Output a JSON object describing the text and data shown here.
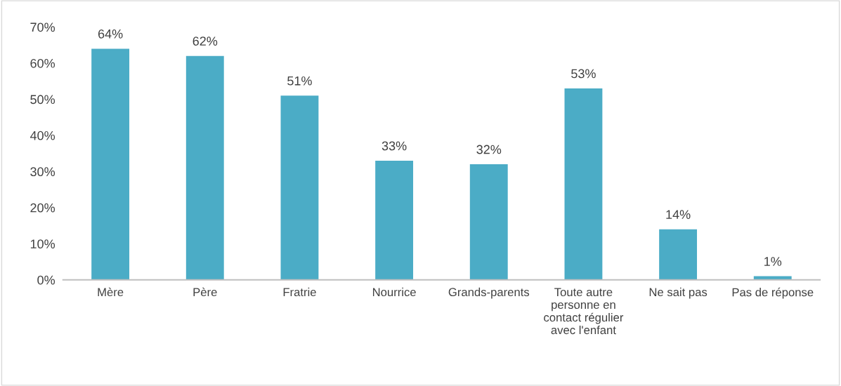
{
  "chart_data": {
    "type": "bar",
    "categories": [
      "Mère",
      "Père",
      "Fratrie",
      "Nourrice",
      "Grands-parents",
      "Toute autre personne en contact régulier avec l'enfant",
      "Ne sait pas",
      "Pas de réponse"
    ],
    "values": [
      64,
      62,
      51,
      33,
      32,
      53,
      14,
      1
    ],
    "value_labels": [
      "64%",
      "62%",
      "51%",
      "33%",
      "32%",
      "53%",
      "14%",
      "1%"
    ],
    "color": "#4bacc6",
    "ylim": [
      0,
      70
    ],
    "yticks": [
      {
        "value": 0,
        "label": "0%"
      },
      {
        "value": 10,
        "label": "10%"
      },
      {
        "value": 20,
        "label": "20%"
      },
      {
        "value": 30,
        "label": "30%"
      },
      {
        "value": 40,
        "label": "40%"
      },
      {
        "value": 50,
        "label": "50%"
      },
      {
        "value": 60,
        "label": "60%"
      },
      {
        "value": 70,
        "label": "70%"
      }
    ],
    "grid": false
  }
}
